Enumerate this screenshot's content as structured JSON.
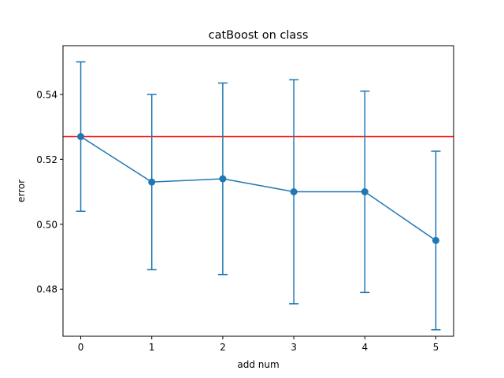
{
  "chart_data": {
    "type": "line",
    "title": "catBoost on class",
    "xlabel": "add num",
    "ylabel": "error",
    "xlim": [
      -0.25,
      5.25
    ],
    "ylim": [
      0.4655,
      0.555
    ],
    "xticks": [
      0,
      1,
      2,
      3,
      4,
      5
    ],
    "yticks": [
      0.48,
      0.5,
      0.52,
      0.54
    ],
    "ytick_labels": [
      "0.48",
      "0.50",
      "0.52",
      "0.54"
    ],
    "grid": false,
    "series": [
      {
        "x": [
          0,
          1,
          2,
          3,
          4,
          5
        ],
        "values": [
          0.527,
          0.513,
          0.514,
          0.51,
          0.51,
          0.495
        ],
        "error": [
          0.023,
          0.027,
          0.0295,
          0.0345,
          0.031,
          0.0275
        ],
        "color": "#1f77b4",
        "marker": "circle"
      }
    ],
    "reference_line": {
      "y": 0.527,
      "color": "#ff0000",
      "orientation": "horizontal"
    }
  }
}
